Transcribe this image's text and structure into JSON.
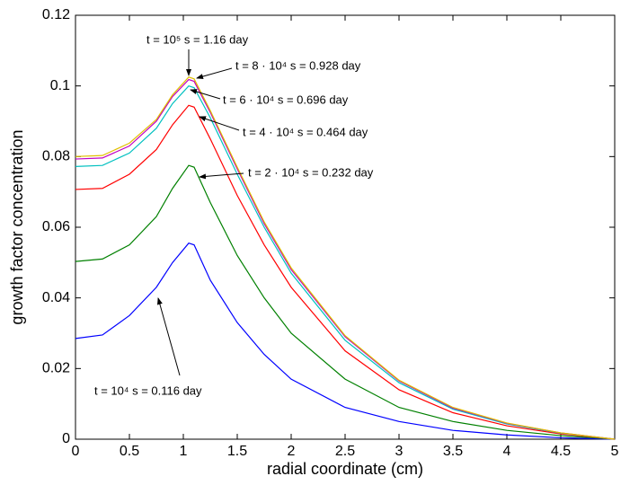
{
  "chart_data": {
    "type": "line",
    "xlabel": "radial coordinate (cm)",
    "ylabel": "growth factor concentration",
    "x": [
      0,
      0.25,
      0.5,
      0.75,
      0.9,
      1.05,
      1.1,
      1.25,
      1.5,
      1.75,
      2,
      2.5,
      3,
      3.5,
      4,
      4.5,
      5
    ],
    "series": [
      {
        "color": "#0000ff",
        "values": [
          0.0285,
          0.0295,
          0.035,
          0.043,
          0.05,
          0.0555,
          0.055,
          0.045,
          0.033,
          0.024,
          0.017,
          0.009,
          0.005,
          0.0025,
          0.0012,
          0.0004,
          0
        ]
      },
      {
        "color": "#008000",
        "values": [
          0.0503,
          0.051,
          0.055,
          0.063,
          0.071,
          0.0775,
          0.077,
          0.067,
          0.052,
          0.04,
          0.03,
          0.017,
          0.009,
          0.005,
          0.0025,
          0.001,
          0
        ]
      },
      {
        "color": "#ff0000",
        "values": [
          0.0707,
          0.071,
          0.075,
          0.082,
          0.089,
          0.0945,
          0.094,
          0.085,
          0.069,
          0.055,
          0.043,
          0.025,
          0.014,
          0.0075,
          0.0038,
          0.0015,
          0
        ]
      },
      {
        "color": "#00c0c0",
        "values": [
          0.0772,
          0.0775,
          0.081,
          0.088,
          0.095,
          0.1,
          0.0995,
          0.091,
          0.075,
          0.06,
          0.047,
          0.028,
          0.016,
          0.0085,
          0.0043,
          0.0017,
          0
        ]
      },
      {
        "color": "#c000c0",
        "values": [
          0.0793,
          0.0796,
          0.083,
          0.09,
          0.097,
          0.1018,
          0.1013,
          0.0925,
          0.0765,
          0.061,
          0.048,
          0.029,
          0.0165,
          0.0088,
          0.0045,
          0.0018,
          0
        ]
      },
      {
        "color": "#e0c000",
        "values": [
          0.08,
          0.0803,
          0.0838,
          0.0905,
          0.0975,
          0.1025,
          0.102,
          0.093,
          0.077,
          0.0615,
          0.0485,
          0.0293,
          0.0167,
          0.009,
          0.0046,
          0.0018,
          0
        ]
      }
    ],
    "annotations": [
      "t = 10⁵ s = 1.16 day",
      "t = 8 · 10⁴ s = 0.928 day",
      "t = 6 · 10⁴ s = 0.696 day",
      "t = 4 · 10⁴ s = 0.464 day",
      "t = 2 · 10⁴ s = 0.232 day",
      "t = 10⁴ s = 0.116 day"
    ],
    "xlim": [
      0,
      5
    ],
    "ylim": [
      0,
      0.12
    ],
    "xticks": [
      0,
      0.5,
      1,
      1.5,
      2,
      2.5,
      3,
      3.5,
      4,
      4.5,
      5
    ],
    "yticks": [
      0,
      0.02,
      0.04,
      0.06,
      0.08,
      0.1,
      0.12
    ],
    "grid": false
  }
}
